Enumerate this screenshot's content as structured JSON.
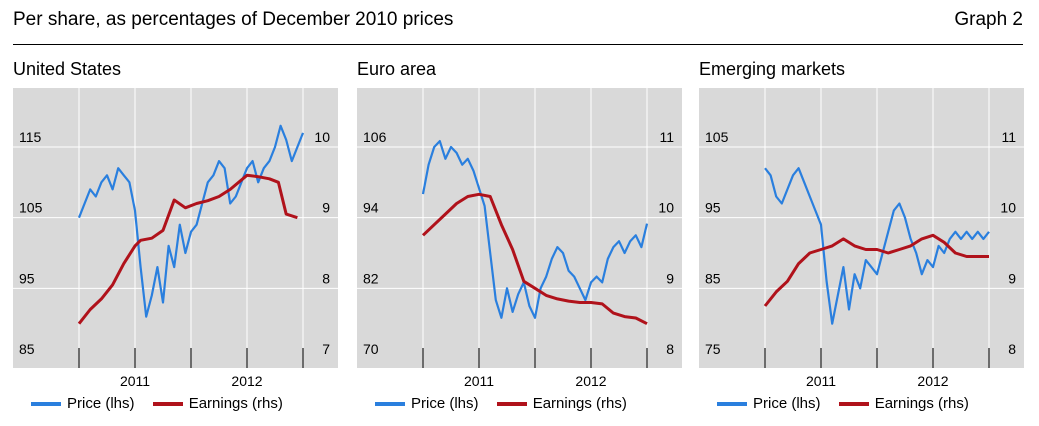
{
  "header": {
    "title": "Per share, as percentages of December 2010 prices",
    "graph_label": "Graph 2"
  },
  "colors": {
    "price": "#2a7fde",
    "earnings": "#b0121b",
    "plot_bg": "#d9d9d9",
    "grid": "#ffffff"
  },
  "legend": {
    "price": "Price (lhs)",
    "earnings": "Earnings (rhs)"
  },
  "chart_data": [
    {
      "type": "line",
      "title": "United States",
      "x_ticks": [
        "2011",
        "2012"
      ],
      "lhs_ticks": [
        "85",
        "95",
        "105",
        "115"
      ],
      "rhs_ticks": [
        "7",
        "8",
        "9",
        "10"
      ],
      "ylim_lhs": [
        85,
        115
      ],
      "ylim_rhs": [
        7,
        10
      ],
      "series": [
        {
          "name": "Price (lhs)",
          "axis": "lhs",
          "x": [
            0,
            0.05,
            0.1,
            0.15,
            0.2,
            0.25,
            0.3,
            0.35,
            0.4,
            0.45,
            0.5,
            0.55,
            0.6,
            0.65,
            0.7,
            0.75,
            0.8,
            0.85,
            0.9,
            0.95,
            1.0,
            1.05,
            1.1,
            1.15,
            1.2,
            1.25,
            1.3,
            1.35,
            1.4,
            1.45,
            1.5,
            1.55,
            1.6,
            1.65,
            1.7,
            1.75,
            1.8,
            1.85,
            1.9,
            1.95,
            2.0
          ],
          "values": [
            105,
            107,
            109,
            108,
            110,
            111,
            109,
            112,
            111,
            110,
            106,
            98,
            91,
            94,
            98,
            93,
            101,
            98,
            104,
            100,
            103,
            104,
            107,
            110,
            111,
            113,
            112,
            107,
            108,
            110,
            112,
            113,
            110,
            112,
            113,
            115,
            118,
            116,
            113,
            115,
            117
          ]
        },
        {
          "name": "Earnings (rhs)",
          "axis": "rhs",
          "x": [
            0,
            0.1,
            0.2,
            0.3,
            0.4,
            0.5,
            0.55,
            0.65,
            0.75,
            0.85,
            0.95,
            1.05,
            1.15,
            1.25,
            1.35,
            1.5,
            1.6,
            1.7,
            1.78,
            1.85,
            1.95
          ],
          "values": [
            7.5,
            7.7,
            7.85,
            8.05,
            8.35,
            8.6,
            8.68,
            8.71,
            8.82,
            9.25,
            9.14,
            9.2,
            9.24,
            9.3,
            9.4,
            9.6,
            9.58,
            9.55,
            9.5,
            9.05,
            9.0
          ]
        }
      ]
    },
    {
      "type": "line",
      "title": "Euro area",
      "x_ticks": [
        "2011",
        "2012"
      ],
      "lhs_ticks": [
        "70",
        "82",
        "94",
        "106"
      ],
      "rhs_ticks": [
        "8",
        "9",
        "10",
        "11"
      ],
      "ylim_lhs": [
        70,
        106
      ],
      "ylim_rhs": [
        8,
        11
      ],
      "series": [
        {
          "name": "Price (lhs)",
          "axis": "lhs",
          "x": [
            0,
            0.05,
            0.1,
            0.15,
            0.2,
            0.25,
            0.3,
            0.35,
            0.4,
            0.45,
            0.5,
            0.55,
            0.6,
            0.65,
            0.7,
            0.75,
            0.8,
            0.85,
            0.9,
            0.95,
            1.0,
            1.05,
            1.1,
            1.15,
            1.2,
            1.25,
            1.3,
            1.35,
            1.4,
            1.45,
            1.5,
            1.55,
            1.6,
            1.65,
            1.7,
            1.75,
            1.8,
            1.85,
            1.9,
            1.95,
            2.0
          ],
          "values": [
            98,
            103,
            106,
            107,
            104,
            106,
            105,
            103,
            104,
            102,
            99,
            96,
            88,
            80,
            77,
            82,
            78,
            81,
            83,
            79,
            77,
            82,
            84,
            87,
            89,
            88,
            85,
            84,
            82,
            80,
            83,
            84,
            83,
            87,
            89,
            90,
            88,
            90,
            91,
            89,
            93
          ]
        },
        {
          "name": "Earnings (rhs)",
          "axis": "rhs",
          "x": [
            0,
            0.1,
            0.2,
            0.3,
            0.4,
            0.5,
            0.6,
            0.7,
            0.8,
            0.9,
            1.0,
            1.1,
            1.2,
            1.3,
            1.4,
            1.5,
            1.6,
            1.7,
            1.8,
            1.9,
            2.0
          ],
          "values": [
            9.75,
            9.9,
            10.05,
            10.2,
            10.3,
            10.33,
            10.3,
            9.9,
            9.55,
            9.1,
            9.0,
            8.9,
            8.85,
            8.82,
            8.8,
            8.8,
            8.78,
            8.65,
            8.6,
            8.58,
            8.5
          ]
        }
      ]
    },
    {
      "type": "line",
      "title": "Emerging markets",
      "x_ticks": [
        "2011",
        "2012"
      ],
      "lhs_ticks": [
        "75",
        "85",
        "95",
        "105"
      ],
      "rhs_ticks": [
        "8",
        "9",
        "10",
        "11"
      ],
      "ylim_lhs": [
        75,
        105
      ],
      "ylim_rhs": [
        8,
        11
      ],
      "series": [
        {
          "name": "Price (lhs)",
          "axis": "lhs",
          "x": [
            0,
            0.05,
            0.1,
            0.15,
            0.2,
            0.25,
            0.3,
            0.35,
            0.4,
            0.45,
            0.5,
            0.55,
            0.6,
            0.65,
            0.7,
            0.75,
            0.8,
            0.85,
            0.9,
            0.95,
            1.0,
            1.05,
            1.1,
            1.15,
            1.2,
            1.25,
            1.3,
            1.35,
            1.4,
            1.45,
            1.5,
            1.55,
            1.6,
            1.65,
            1.7,
            1.75,
            1.8,
            1.85,
            1.9,
            1.95,
            2.0
          ],
          "values": [
            102,
            101,
            98,
            97,
            99,
            101,
            102,
            100,
            98,
            96,
            94,
            86,
            80,
            84,
            88,
            82,
            87,
            85,
            89,
            88,
            87,
            90,
            93,
            96,
            97,
            95,
            92,
            90,
            87,
            89,
            88,
            91,
            90,
            92,
            93,
            92,
            93,
            92,
            93,
            92,
            93
          ]
        },
        {
          "name": "Earnings (rhs)",
          "axis": "rhs",
          "x": [
            0,
            0.1,
            0.2,
            0.3,
            0.4,
            0.5,
            0.6,
            0.7,
            0.8,
            0.9,
            1.0,
            1.1,
            1.2,
            1.3,
            1.4,
            1.5,
            1.6,
            1.7,
            1.8,
            1.9,
            2.0
          ],
          "values": [
            8.75,
            8.95,
            9.1,
            9.35,
            9.5,
            9.55,
            9.6,
            9.7,
            9.6,
            9.55,
            9.55,
            9.5,
            9.55,
            9.6,
            9.7,
            9.75,
            9.65,
            9.5,
            9.45,
            9.45,
            9.45
          ]
        }
      ]
    }
  ]
}
